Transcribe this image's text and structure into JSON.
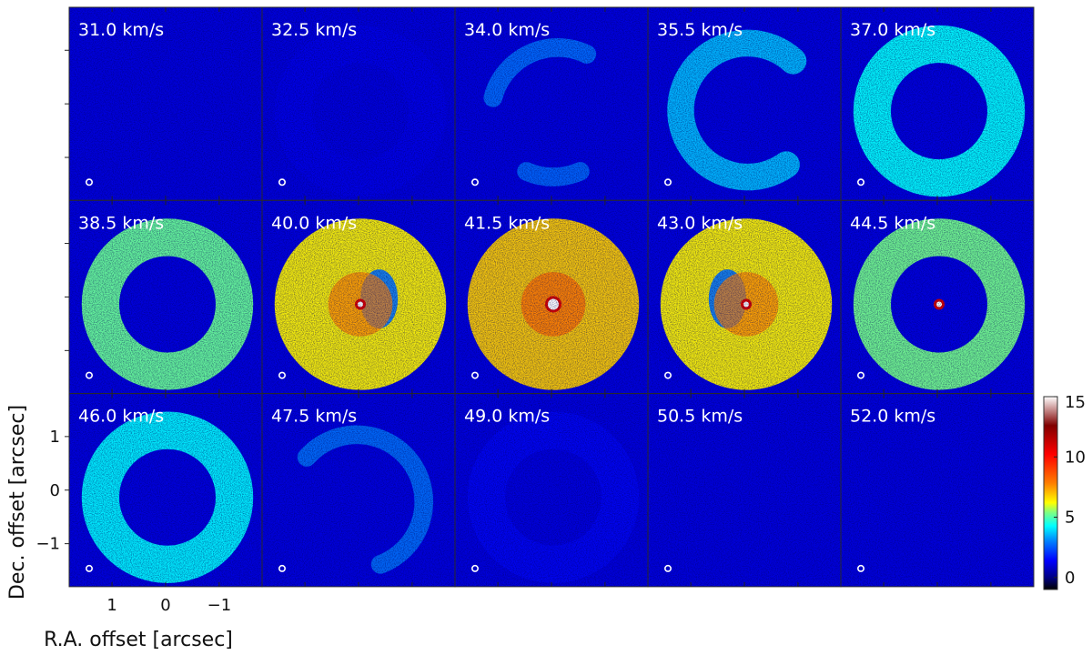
{
  "chart_data": {
    "type": "heatmap",
    "title": "",
    "xlabel": "R.A. offset [arcsec]",
    "ylabel": "Dec. offset [arcsec]",
    "layout": {
      "rows": 3,
      "cols": 5
    },
    "x_ticks": {
      "values": [
        1,
        0,
        -1
      ],
      "labels": [
        "1",
        "0",
        "−1"
      ]
    },
    "y_ticks": {
      "values": [
        1,
        0,
        -1
      ],
      "labels": [
        "1",
        "0",
        "−1"
      ]
    },
    "axis_range_arcsec": {
      "ra": [
        1.8,
        -1.8
      ],
      "dec": [
        -1.8,
        1.8
      ]
    },
    "colorbar": {
      "min": -1,
      "max": 15,
      "ticks": [
        0,
        5,
        10,
        15
      ],
      "tick_labels": [
        "0",
        "5",
        "10",
        "15"
      ],
      "colormap": [
        "#000000",
        "#000080",
        "#0000ff",
        "#0080ff",
        "#00ffff",
        "#80ff80",
        "#ffff00",
        "#ff8000",
        "#ff0000",
        "#800000",
        "#ffffff"
      ]
    },
    "beam_marker": "white-circle",
    "panels": [
      {
        "label": "31.0 km/s",
        "velocity": 31.0,
        "morphology": "noise",
        "ring_level": 0.3
      },
      {
        "label": "32.5 km/s",
        "velocity": 32.5,
        "morphology": "faint-ring",
        "ring_level": 1.2
      },
      {
        "label": "34.0 km/s",
        "velocity": 34.0,
        "morphology": "partial-arcs",
        "ring_level": 2.8
      },
      {
        "label": "35.5 km/s",
        "velocity": 35.5,
        "morphology": "open-arc",
        "ring_level": 3.6
      },
      {
        "label": "37.0 km/s",
        "velocity": 37.0,
        "morphology": "ring",
        "ring_level": 4.3
      },
      {
        "label": "38.5 km/s",
        "velocity": 38.5,
        "morphology": "ring",
        "ring_level": 5.2
      },
      {
        "label": "40.0 km/s",
        "velocity": 40.0,
        "morphology": "filled-ring-with-core",
        "ring_level": 6.3
      },
      {
        "label": "41.5 km/s",
        "velocity": 41.5,
        "morphology": "filled-disk-with-core",
        "ring_level": 6.8
      },
      {
        "label": "43.0 km/s",
        "velocity": 43.0,
        "morphology": "filled-ring-with-core",
        "ring_level": 6.3
      },
      {
        "label": "44.5 km/s",
        "velocity": 44.5,
        "morphology": "ring-with-core",
        "ring_level": 5.3
      },
      {
        "label": "46.0 km/s",
        "velocity": 46.0,
        "morphology": "ring",
        "ring_level": 4.2
      },
      {
        "label": "47.5 km/s",
        "velocity": 47.5,
        "morphology": "arc",
        "ring_level": 3.0
      },
      {
        "label": "49.0 km/s",
        "velocity": 49.0,
        "morphology": "faint-ring",
        "ring_level": 1.5
      },
      {
        "label": "50.5 km/s",
        "velocity": 50.5,
        "morphology": "noise",
        "ring_level": 0.6
      },
      {
        "label": "52.0 km/s",
        "velocity": 52.0,
        "morphology": "noise",
        "ring_level": 0.3
      }
    ]
  }
}
